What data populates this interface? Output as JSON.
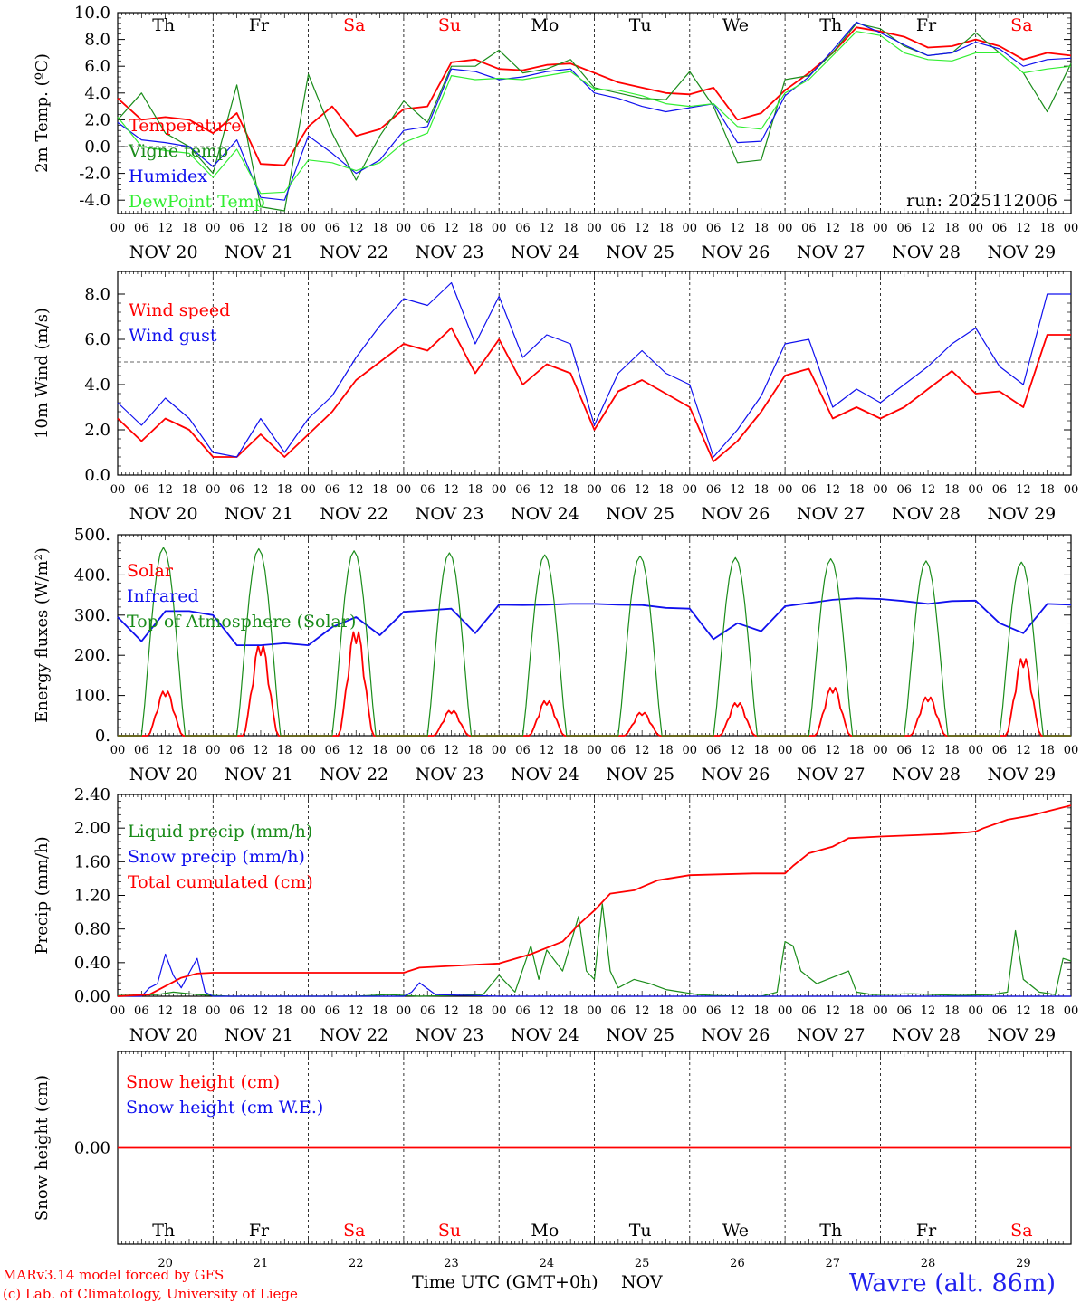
{
  "run_label": "run: 2025112006",
  "station": "Wavre (alt. 86m)",
  "credit_line1": "MARv3.14 model forced by GFS",
  "credit_line2": "(c) Lab. of Climatology, University of Liege",
  "x_axis_title": "Time UTC (GMT+0h)",
  "month_label": "NOV",
  "colors": {
    "red": "#ff0000",
    "green": "#1a8c1a",
    "blue": "#1010ee",
    "lightgreen": "#33ee33",
    "station": "#2222ee"
  },
  "days": [
    {
      "abbr": "Th",
      "date": "NOV 20",
      "num": "20",
      "weekend": false
    },
    {
      "abbr": "Fr",
      "date": "NOV 21",
      "num": "21",
      "weekend": false
    },
    {
      "abbr": "Sa",
      "date": "NOV 22",
      "num": "22",
      "weekend": true
    },
    {
      "abbr": "Su",
      "date": "NOV 23",
      "num": "23",
      "weekend": true
    },
    {
      "abbr": "Mo",
      "date": "NOV 24",
      "num": "24",
      "weekend": false
    },
    {
      "abbr": "Tu",
      "date": "NOV 25",
      "num": "25",
      "weekend": false
    },
    {
      "abbr": "We",
      "date": "NOV 26",
      "num": "26",
      "weekend": false
    },
    {
      "abbr": "Th",
      "date": "NOV 27",
      "num": "27",
      "weekend": false
    },
    {
      "abbr": "Fr",
      "date": "NOV 28",
      "num": "28",
      "weekend": false
    },
    {
      "abbr": "Sa",
      "date": "NOV 29",
      "num": "29",
      "weekend": true
    }
  ],
  "hour_ticks": [
    "00",
    "06",
    "12",
    "18"
  ],
  "chart_data": [
    {
      "id": "temp",
      "type": "line",
      "ylabel": "2m Temp. (ºC)",
      "ylim": [
        -5,
        10
      ],
      "yticks": [
        "-4.0",
        "-2.0",
        "0.0",
        "2.0",
        "4.0",
        "6.0",
        "8.0",
        "10.0"
      ],
      "ytick_values": [
        -4,
        -2,
        0,
        2,
        4,
        6,
        8,
        10
      ],
      "ref_line": 0,
      "x_hours": [
        0,
        6,
        12,
        18,
        24,
        30,
        36,
        42,
        48,
        54,
        60,
        66,
        72,
        78,
        84,
        90,
        96,
        102,
        108,
        114,
        120,
        126,
        132,
        138,
        144,
        150,
        156,
        162,
        168,
        174,
        180,
        186,
        192,
        198,
        204,
        210,
        216,
        222,
        228,
        234,
        240
      ],
      "series": [
        {
          "name": "Temperature",
          "color": "red",
          "values": [
            3.6,
            2.0,
            2.2,
            2.0,
            1.0,
            2.5,
            -1.3,
            -1.4,
            1.5,
            3.0,
            0.8,
            1.3,
            2.8,
            3.0,
            6.3,
            6.5,
            5.8,
            5.7,
            6.1,
            6.2,
            5.5,
            4.8,
            4.4,
            4.0,
            3.9,
            4.4,
            2.0,
            2.5,
            4.2,
            5.5,
            7.0,
            8.9,
            8.6,
            8.2,
            7.4,
            7.5,
            8.0,
            7.5,
            6.5,
            7.0,
            6.8
          ]
        },
        {
          "name": "Vigne temp",
          "color": "green",
          "values": [
            2.0,
            4.0,
            1.0,
            0.0,
            -2.0,
            4.6,
            -4.5,
            -4.8,
            5.4,
            1.0,
            -2.5,
            0.8,
            3.4,
            1.8,
            6.0,
            6.0,
            7.2,
            5.5,
            5.8,
            6.5,
            4.4,
            4.0,
            3.6,
            3.5,
            5.6,
            3.0,
            -1.2,
            -1.0,
            5.0,
            5.3,
            7.0,
            9.2,
            8.8,
            7.5,
            6.8,
            7.0,
            8.5,
            7.0,
            5.5,
            2.6,
            6.2
          ]
        },
        {
          "name": "Humidex",
          "color": "blue",
          "values": [
            1.8,
            0.5,
            0.3,
            0.0,
            -1.5,
            0.5,
            -3.8,
            -4.0,
            0.8,
            -0.5,
            -2.0,
            -1.0,
            1.2,
            1.5,
            5.8,
            5.6,
            5.0,
            5.2,
            5.6,
            5.8,
            4.0,
            3.6,
            3.0,
            2.6,
            2.9,
            3.2,
            0.3,
            0.4,
            3.8,
            5.2,
            7.2,
            9.3,
            8.5,
            7.6,
            6.8,
            7.0,
            7.8,
            7.3,
            6.0,
            6.5,
            6.6
          ]
        },
        {
          "name": "DewPoint Temp",
          "color": "lightgreen",
          "values": [
            2.2,
            0.0,
            -0.3,
            -0.5,
            -2.3,
            -0.2,
            -3.5,
            -3.4,
            -1.0,
            -1.2,
            -1.8,
            -1.2,
            0.3,
            1.0,
            5.3,
            5.0,
            5.1,
            5.0,
            5.3,
            5.6,
            4.3,
            4.2,
            3.8,
            3.2,
            3.0,
            3.2,
            1.5,
            1.3,
            4.0,
            5.0,
            6.8,
            8.6,
            8.3,
            7.0,
            6.5,
            6.4,
            7.0,
            7.0,
            5.5,
            5.8,
            6.0
          ]
        }
      ]
    },
    {
      "id": "wind",
      "type": "line",
      "ylabel": "10m Wind (m/s)",
      "ylim": [
        0,
        9
      ],
      "yticks": [
        "0.0",
        "2.0",
        "4.0",
        "6.0",
        "8.0"
      ],
      "ytick_values": [
        0,
        2,
        4,
        6,
        8
      ],
      "ref_line": 5,
      "x_hours": [
        0,
        6,
        12,
        18,
        24,
        30,
        36,
        42,
        48,
        54,
        60,
        66,
        72,
        78,
        84,
        90,
        96,
        102,
        108,
        114,
        120,
        126,
        132,
        138,
        144,
        150,
        156,
        162,
        168,
        174,
        180,
        186,
        192,
        198,
        204,
        210,
        216,
        222,
        228,
        234,
        240
      ],
      "series": [
        {
          "name": "Wind speed",
          "color": "red",
          "values": [
            2.5,
            1.5,
            2.5,
            2.0,
            0.8,
            0.8,
            1.8,
            0.8,
            1.8,
            2.8,
            4.2,
            5.0,
            5.8,
            5.5,
            6.5,
            4.5,
            6.0,
            4.0,
            4.9,
            4.5,
            2.0,
            3.7,
            4.2,
            3.6,
            3.0,
            0.6,
            1.5,
            2.8,
            4.4,
            4.7,
            2.5,
            3.0,
            2.5,
            3.0,
            3.8,
            4.6,
            3.6,
            3.7,
            3.0,
            6.2,
            6.2
          ]
        },
        {
          "name": "Wind gust",
          "color": "blue",
          "values": [
            3.2,
            2.2,
            3.4,
            2.5,
            1.0,
            0.8,
            2.5,
            1.0,
            2.5,
            3.5,
            5.2,
            6.6,
            7.8,
            7.5,
            8.5,
            5.8,
            7.9,
            5.2,
            6.2,
            5.8,
            2.2,
            4.5,
            5.5,
            4.5,
            4.0,
            0.8,
            2.0,
            3.5,
            5.8,
            6.0,
            3.0,
            3.8,
            3.2,
            4.0,
            4.8,
            5.8,
            6.5,
            4.8,
            4.0,
            8.0,
            8.0
          ]
        }
      ]
    },
    {
      "id": "energy",
      "type": "line",
      "ylabel": "Energy fluxes (W/m²)",
      "ylim": [
        0,
        500
      ],
      "yticks": [
        "0.",
        "100.",
        "200.",
        "300.",
        "400.",
        "500."
      ],
      "ytick_values": [
        0,
        100,
        200,
        300,
        400,
        500
      ],
      "series": [
        {
          "name": "Solar",
          "color": "red",
          "peaks": [
            115,
            235,
            270,
            65,
            90,
            60,
            85,
            125,
            100,
            200
          ]
        },
        {
          "name": "Infrared",
          "color": "blue",
          "x_hours": [
            0,
            6,
            12,
            18,
            24,
            30,
            36,
            42,
            48,
            54,
            60,
            66,
            72,
            78,
            84,
            90,
            96,
            102,
            108,
            114,
            120,
            126,
            132,
            138,
            144,
            150,
            156,
            162,
            168,
            174,
            180,
            186,
            192,
            198,
            204,
            210,
            216,
            222,
            228,
            234,
            240
          ],
          "values": [
            295,
            235,
            310,
            310,
            300,
            225,
            225,
            230,
            225,
            270,
            295,
            250,
            308,
            312,
            316,
            255,
            326,
            325,
            326,
            328,
            328,
            326,
            325,
            318,
            316,
            240,
            280,
            260,
            322,
            330,
            338,
            342,
            340,
            335,
            328,
            335,
            336,
            280,
            255,
            328,
            326
          ]
        },
        {
          "name": "Top of Atmosphere (Solar)",
          "color": "green",
          "peaks": [
            468,
            465,
            460,
            455,
            450,
            447,
            443,
            440,
            435,
            432
          ]
        }
      ]
    },
    {
      "id": "precip",
      "type": "line",
      "ylabel": "Precip (mm/h)",
      "ylim": [
        0,
        2.4
      ],
      "yticks": [
        "0.00",
        "0.40",
        "0.80",
        "1.20",
        "1.60",
        "2.00",
        "2.40"
      ],
      "ytick_values": [
        0,
        0.4,
        0.8,
        1.2,
        1.6,
        2.0,
        2.4
      ],
      "series": [
        {
          "name": "Liquid precip (mm/h)",
          "color": "green",
          "x_hours": [
            0,
            10,
            14,
            20,
            28,
            36,
            44,
            52,
            60,
            68,
            76,
            84,
            92,
            96,
            100,
            104,
            106,
            108,
            112,
            116,
            118,
            120,
            122,
            124,
            126,
            130,
            134,
            138,
            142,
            146,
            150,
            156,
            162,
            166,
            168,
            170,
            172,
            176,
            184,
            186,
            190,
            200,
            212,
            220,
            224,
            226,
            228,
            232,
            236,
            238,
            240
          ],
          "values": [
            0.01,
            0.02,
            0.05,
            0.02,
            0.0,
            0.0,
            0.0,
            0.0,
            0.0,
            0.02,
            0.0,
            0.01,
            0.02,
            0.25,
            0.05,
            0.6,
            0.2,
            0.55,
            0.3,
            0.95,
            0.3,
            0.2,
            1.1,
            0.3,
            0.1,
            0.2,
            0.15,
            0.08,
            0.05,
            0.02,
            0.01,
            0.0,
            0.0,
            0.05,
            0.65,
            0.6,
            0.3,
            0.15,
            0.3,
            0.05,
            0.02,
            0.03,
            0.01,
            0.02,
            0.05,
            0.78,
            0.2,
            0.05,
            0.02,
            0.45,
            0.42
          ]
        },
        {
          "name": "Snow precip (mm/h)",
          "color": "blue",
          "x_hours": [
            0,
            6,
            8,
            10,
            12,
            14,
            16,
            18,
            20,
            22,
            24,
            48,
            72,
            74,
            76,
            80,
            96,
            120,
            144,
            168,
            192,
            216,
            240
          ],
          "values": [
            0.0,
            0.0,
            0.1,
            0.15,
            0.5,
            0.25,
            0.1,
            0.28,
            0.45,
            0.05,
            0.0,
            0.0,
            0.0,
            0.05,
            0.16,
            0.02,
            0.0,
            0.0,
            0.0,
            0.0,
            0.0,
            0.0,
            0.0
          ]
        },
        {
          "name": "Total cumulated (cm)",
          "color": "red",
          "x_hours": [
            0,
            8,
            12,
            16,
            20,
            24,
            48,
            72,
            76,
            84,
            96,
            104,
            112,
            116,
            120,
            124,
            130,
            136,
            144,
            160,
            168,
            170,
            174,
            180,
            184,
            192,
            208,
            214,
            216,
            218,
            224,
            230,
            234,
            240
          ],
          "values": [
            0.0,
            0.02,
            0.12,
            0.22,
            0.27,
            0.28,
            0.28,
            0.28,
            0.34,
            0.36,
            0.39,
            0.5,
            0.65,
            0.85,
            1.02,
            1.22,
            1.26,
            1.38,
            1.44,
            1.46,
            1.46,
            1.55,
            1.7,
            1.78,
            1.88,
            1.9,
            1.93,
            1.95,
            1.96,
            2.0,
            2.1,
            2.15,
            2.2,
            2.27
          ]
        }
      ]
    },
    {
      "id": "snow",
      "type": "line",
      "ylabel": "Snow height (cm)",
      "ylim": [
        -1,
        1
      ],
      "yticks": [
        "0.00"
      ],
      "ytick_values": [
        0
      ],
      "series": [
        {
          "name": "Snow height (cm)",
          "color": "red",
          "x_hours": [
            0,
            240
          ],
          "values": [
            0,
            0
          ]
        },
        {
          "name": "Snow height (cm W.E.)",
          "color": "blue",
          "x_hours": [],
          "values": []
        }
      ]
    }
  ]
}
